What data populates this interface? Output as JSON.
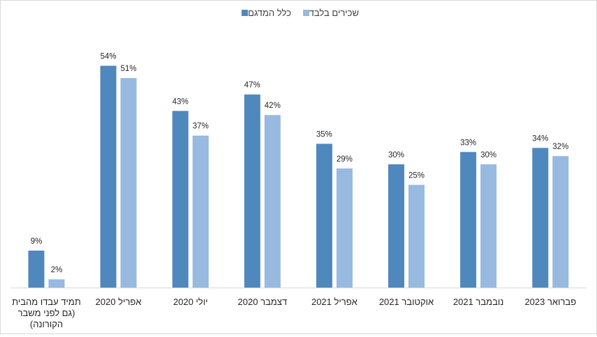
{
  "chart_data": {
    "type": "bar",
    "title": "",
    "xlabel": "",
    "ylabel": "",
    "ylim": [
      0,
      60
    ],
    "grid": false,
    "legend_position": "top",
    "value_suffix": "%",
    "categories": [
      [
        "תמיד עבדו מהבית",
        "(גם לפני משבר",
        "הקורונה)"
      ],
      [
        "אפריל 2020"
      ],
      [
        "יולי 2020"
      ],
      [
        "דצמבר 2020"
      ],
      [
        "אפריל 2021"
      ],
      [
        "אוקטובר 2021"
      ],
      [
        "נובמבר 2021"
      ],
      [
        "פברואר 2023"
      ]
    ],
    "series": [
      {
        "name": "כלל המדגם",
        "color": "#4f88bd",
        "values": [
          9,
          54,
          43,
          47,
          35,
          30,
          33,
          34
        ]
      },
      {
        "name": "שכירים בלבד",
        "color": "#98b9e0",
        "values": [
          2,
          51,
          37,
          42,
          29,
          25,
          30,
          32
        ]
      }
    ]
  }
}
